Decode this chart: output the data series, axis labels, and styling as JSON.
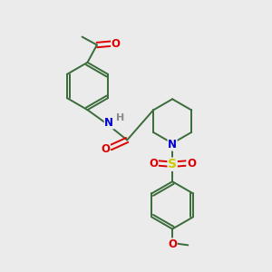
{
  "bg_color": "#ebebeb",
  "bond_color": "#3a6b3a",
  "bond_width": 1.4,
  "atom_colors": {
    "N": "#0000cc",
    "O": "#dd0000",
    "S": "#cccc00",
    "H": "#888888"
  },
  "font_size": 8.5,
  "xlim": [
    0,
    10
  ],
  "ylim": [
    0,
    10
  ]
}
